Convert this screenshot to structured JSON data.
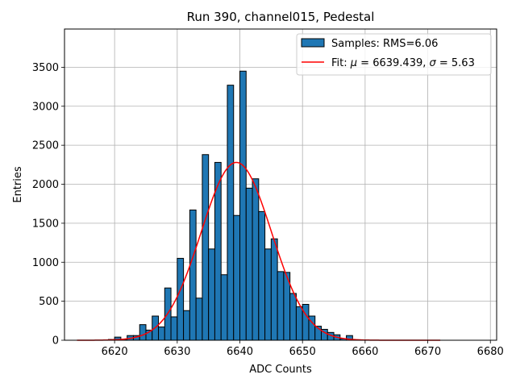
{
  "chart_data": {
    "type": "bar",
    "title": "Run 390, channel015, Pedestal",
    "xlabel": "ADC Counts",
    "ylabel": "Entries",
    "xlim": [
      6612,
      6681
    ],
    "ylim": [
      0,
      3990
    ],
    "x_ticks": [
      "6620",
      "6630",
      "6640",
      "6650",
      "6660",
      "6670",
      "6680"
    ],
    "x_tick_values": [
      6620,
      6630,
      6640,
      6650,
      6660,
      6670,
      6680
    ],
    "y_ticks": [
      "0",
      "500",
      "1000",
      "1500",
      "2000",
      "2500",
      "3000",
      "3500"
    ],
    "y_tick_values": [
      0,
      500,
      1000,
      1500,
      2000,
      2500,
      3000,
      3500
    ],
    "grid": true,
    "legend_position": "top-right",
    "histogram": {
      "legend_label": "Samples: RMS=6.06",
      "color": "#1f77b4",
      "edge_color": "#000000",
      "bin_width": 1,
      "bin_starts": [
        6619,
        6620,
        6621,
        6622,
        6623,
        6624,
        6625,
        6626,
        6627,
        6628,
        6629,
        6630,
        6631,
        6632,
        6633,
        6634,
        6635,
        6636,
        6637,
        6638,
        6639,
        6640,
        6641,
        6642,
        6643,
        6644,
        6645,
        6646,
        6647,
        6648,
        6649,
        6650,
        6651,
        6652,
        6653,
        6654,
        6655,
        6656,
        6657
      ],
      "values": [
        10,
        40,
        10,
        60,
        60,
        200,
        130,
        310,
        170,
        670,
        300,
        1050,
        380,
        1670,
        540,
        2380,
        1170,
        2280,
        840,
        3270,
        1600,
        3450,
        1950,
        2070,
        1650,
        1170,
        1300,
        880,
        870,
        600,
        430,
        460,
        310,
        180,
        140,
        100,
        70,
        20,
        60
      ]
    },
    "fit": {
      "legend_label": "Fit: μ = 6639.439, σ = 5.63",
      "legend_prefix": "Fit: ",
      "legend_mu": "μ",
      "legend_mid": " = 6639.439, ",
      "legend_sigma": "σ",
      "legend_tail": " = 5.63",
      "color": "#ff0000",
      "mu": 6639.439,
      "sigma": 5.63,
      "amplitude": 2280,
      "x_range": [
        6614,
        6672
      ]
    }
  }
}
